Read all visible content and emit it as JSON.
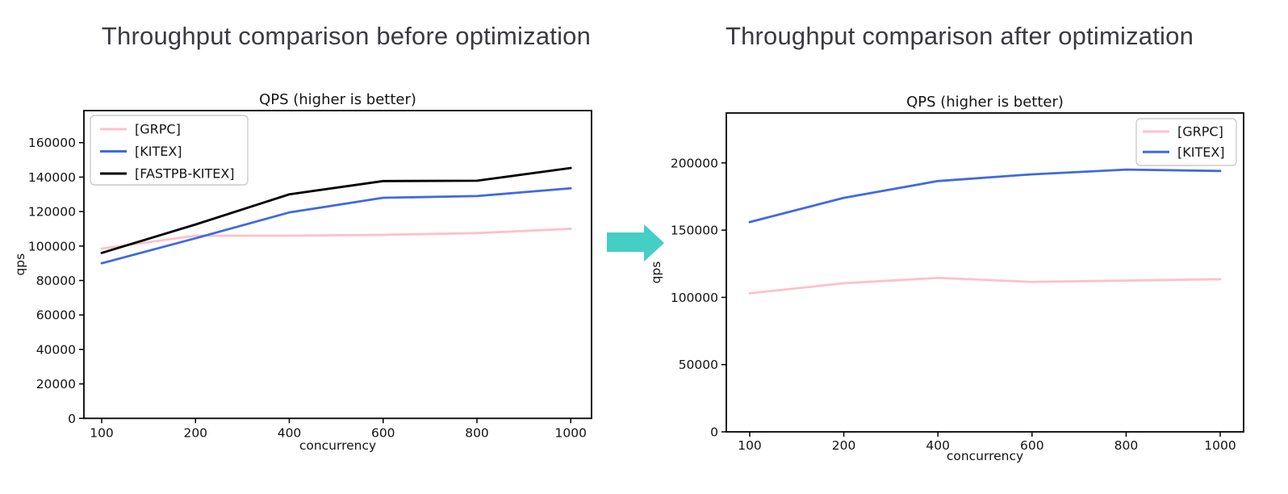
{
  "headings": {
    "before": "Throughput comparison before optimization",
    "after": "Throughput comparison after optimization"
  },
  "arrow": {
    "meaning": "before-to-after",
    "color": "#45cec5"
  },
  "chart_data": [
    {
      "id": "before",
      "type": "line",
      "title": "QPS (higher is better)",
      "xlabel": "concurrency",
      "ylabel": "qps",
      "x": [
        100,
        200,
        400,
        600,
        800,
        1000
      ],
      "x_tick_labels": [
        "100",
        "200",
        "400",
        "600",
        "800",
        "1000"
      ],
      "x_spacing": "equal",
      "yticks": [
        0,
        20000,
        40000,
        60000,
        80000,
        100000,
        120000,
        140000,
        160000
      ],
      "ylim": [
        0,
        178600
      ],
      "grid": false,
      "legend_position": "upper-left",
      "series": [
        {
          "name": "[GRPC]",
          "color": "#ffc0cb",
          "values": [
            98500,
            106000,
            106000,
            106500,
            107500,
            110000
          ]
        },
        {
          "name": "[KITEX]",
          "color": "#4169e1",
          "values": [
            90000,
            104500,
            119500,
            128000,
            129000,
            133500
          ]
        },
        {
          "name": "[FASTPB-KITEX]",
          "color": "#000000",
          "values": [
            96000,
            112500,
            130000,
            137700,
            137900,
            145300
          ]
        }
      ]
    },
    {
      "id": "after",
      "type": "line",
      "title": "QPS (higher is better)",
      "xlabel": "concurrency",
      "ylabel": "qps",
      "x": [
        100,
        200,
        400,
        600,
        800,
        1000
      ],
      "x_tick_labels": [
        "100",
        "200",
        "400",
        "600",
        "800",
        "1000"
      ],
      "x_spacing": "equal",
      "yticks": [
        0,
        50000,
        100000,
        150000,
        200000
      ],
      "ylim": [
        0,
        237100
      ],
      "grid": false,
      "legend_position": "upper-right",
      "series": [
        {
          "name": "[GRPC]",
          "color": "#ffc0cb",
          "values": [
            103000,
            110500,
            114500,
            111500,
            112500,
            113500
          ]
        },
        {
          "name": "[KITEX]",
          "color": "#4169e1",
          "values": [
            156000,
            174000,
            186500,
            191500,
            195000,
            194000
          ]
        }
      ]
    }
  ]
}
